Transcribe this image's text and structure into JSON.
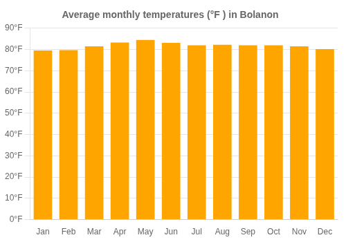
{
  "chart_data": {
    "type": "bar",
    "title": "Average monthly temperatures (°F ) in Bolanon",
    "categories": [
      "Jan",
      "Feb",
      "Mar",
      "Apr",
      "May",
      "Jun",
      "Jul",
      "Aug",
      "Sep",
      "Oct",
      "Nov",
      "Dec"
    ],
    "values": [
      79.5,
      79.7,
      81.5,
      83.3,
      84.5,
      83.1,
      82.0,
      82.2,
      82.0,
      82.0,
      81.5,
      80.2
    ],
    "color": "#FFA500",
    "ylim": [
      0,
      90
    ],
    "yticks": [
      {
        "value": 0,
        "label": "0°F"
      },
      {
        "value": 10,
        "label": "10°F"
      },
      {
        "value": 20,
        "label": "20°F"
      },
      {
        "value": 30,
        "label": "30°F"
      },
      {
        "value": 40,
        "label": "40°F"
      },
      {
        "value": 50,
        "label": "50°F"
      },
      {
        "value": 60,
        "label": "60°F"
      },
      {
        "value": 70,
        "label": "70°F"
      },
      {
        "value": 80,
        "label": "80°F"
      },
      {
        "value": 90,
        "label": "90°F"
      }
    ],
    "grid": true
  }
}
